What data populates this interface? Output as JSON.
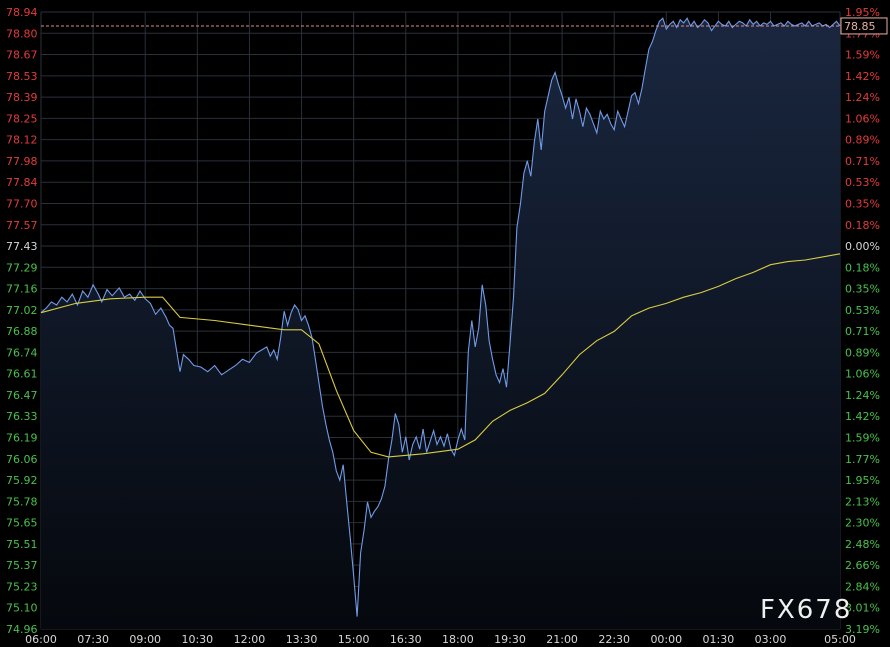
{
  "chart_data": {
    "type": "line",
    "ref_price": 77.43,
    "y_ticks": [
      "78.94",
      "78.80",
      "78.67",
      "78.53",
      "78.39",
      "78.25",
      "78.12",
      "77.98",
      "77.84",
      "77.70",
      "77.57",
      "77.43",
      "77.29",
      "77.16",
      "77.02",
      "76.88",
      "76.74",
      "76.61",
      "76.47",
      "76.33",
      "76.19",
      "76.06",
      "75.92",
      "75.78",
      "75.65",
      "75.51",
      "75.37",
      "75.23",
      "75.10",
      "74.96"
    ],
    "pct_ticks": [
      "1.95%",
      "1.77%",
      "1.59%",
      "1.42%",
      "1.24%",
      "1.06%",
      "0.89%",
      "0.71%",
      "0.53%",
      "0.35%",
      "0.18%",
      "0.00%",
      "0.18%",
      "0.35%",
      "0.53%",
      "0.71%",
      "0.89%",
      "1.06%",
      "1.24%",
      "1.42%",
      "1.59%",
      "1.77%",
      "1.95%",
      "2.13%",
      "2.30%",
      "2.48%",
      "2.66%",
      "2.84%",
      "3.01%",
      "3.19%"
    ],
    "x_ticks": [
      "06:00",
      "07:30",
      "09:00",
      "10:30",
      "12:00",
      "13:30",
      "15:00",
      "16:30",
      "18:00",
      "19:30",
      "21:00",
      "22:30",
      "00:00",
      "01:30",
      "03:00",
      "05:00"
    ],
    "last_price": "78.85",
    "ylim": [
      74.96,
      78.94
    ],
    "series": [
      {
        "role": "price",
        "color": "#6f9be8",
        "x": [
          0,
          0.15,
          0.3,
          0.45,
          0.6,
          0.75,
          0.9,
          1.05,
          1.2,
          1.35,
          1.5,
          1.65,
          1.75,
          1.9,
          2.05,
          2.25,
          2.4,
          2.55,
          2.7,
          2.85,
          3.0,
          3.15,
          3.3,
          3.45,
          3.6,
          3.7,
          3.8,
          4.0,
          4.1,
          4.25,
          4.4,
          4.6,
          4.8,
          5.0,
          5.2,
          5.4,
          5.6,
          5.8,
          6.0,
          6.2,
          6.35,
          6.5,
          6.6,
          6.7,
          6.8,
          6.9,
          7.0,
          7.1,
          7.2,
          7.3,
          7.4,
          7.5,
          7.6,
          7.7,
          7.8,
          7.9,
          8.0,
          8.1,
          8.2,
          8.3,
          8.4,
          8.5,
          8.6,
          8.7,
          8.8,
          8.9,
          9.0,
          9.1,
          9.2,
          9.3,
          9.4,
          9.5,
          9.6,
          9.7,
          9.8,
          9.9,
          10.0,
          10.1,
          10.2,
          10.3,
          10.4,
          10.5,
          10.6,
          10.7,
          10.8,
          10.9,
          11.0,
          11.1,
          11.2,
          11.3,
          11.4,
          11.5,
          11.6,
          11.7,
          11.8,
          11.9,
          12.0,
          12.1,
          12.2,
          12.3,
          12.4,
          12.5,
          12.6,
          12.7,
          12.8,
          12.9,
          13.0,
          13.1,
          13.2,
          13.3,
          13.4,
          13.5,
          13.6,
          13.7,
          13.8,
          13.9,
          14.0,
          14.1,
          14.2,
          14.3,
          14.4,
          14.5,
          14.6,
          14.7,
          14.8,
          14.9,
          15.0,
          15.1,
          15.2,
          15.3,
          15.4,
          15.5,
          15.6,
          15.7,
          15.8,
          15.9,
          16.0,
          16.1,
          16.2,
          16.3,
          16.4,
          16.5,
          16.6,
          16.7,
          16.8,
          16.9,
          17.0,
          17.1,
          17.2,
          17.3,
          17.4,
          17.5,
          17.6,
          17.7,
          17.8,
          17.9,
          18.0,
          18.1,
          18.2,
          18.3,
          18.4,
          18.5,
          18.6,
          18.7,
          18.8,
          18.9,
          19.0,
          19.1,
          19.2,
          19.3,
          19.4,
          19.5,
          19.6,
          19.7,
          19.8,
          19.9,
          20.0,
          20.1,
          20.2,
          20.3,
          20.4,
          20.5,
          20.6,
          20.7,
          20.8,
          20.9,
          21.0,
          21.1,
          21.2,
          21.3,
          21.4,
          21.5,
          21.6,
          21.7,
          21.8,
          21.9,
          22.0,
          22.1,
          22.2,
          22.3,
          22.4,
          22.5,
          22.6,
          22.7,
          22.8,
          22.9,
          23.0
        ],
        "values": [
          77.0,
          77.03,
          77.07,
          77.05,
          77.1,
          77.07,
          77.12,
          77.05,
          77.14,
          77.1,
          77.18,
          77.12,
          77.07,
          77.15,
          77.11,
          77.16,
          77.1,
          77.12,
          77.08,
          77.14,
          77.09,
          77.06,
          76.99,
          77.03,
          76.97,
          76.92,
          76.9,
          76.62,
          76.73,
          76.7,
          76.66,
          76.65,
          76.62,
          76.66,
          76.6,
          76.63,
          76.66,
          76.7,
          76.68,
          76.74,
          76.76,
          76.78,
          76.72,
          76.76,
          76.7,
          76.84,
          77.01,
          76.92,
          77.0,
          77.05,
          77.02,
          76.95,
          76.98,
          76.92,
          76.84,
          76.7,
          76.55,
          76.4,
          76.28,
          76.18,
          76.1,
          75.98,
          75.92,
          76.02,
          75.78,
          75.55,
          75.3,
          75.04,
          75.45,
          75.6,
          75.78,
          75.68,
          75.72,
          75.75,
          75.8,
          75.88,
          76.05,
          76.18,
          76.35,
          76.28,
          76.1,
          76.2,
          76.05,
          76.15,
          76.2,
          76.12,
          76.25,
          76.1,
          76.17,
          76.24,
          76.15,
          76.2,
          76.14,
          76.22,
          76.12,
          76.08,
          76.18,
          76.25,
          76.18,
          76.75,
          76.95,
          76.78,
          76.9,
          77.18,
          77.05,
          76.82,
          76.7,
          76.6,
          76.55,
          76.64,
          76.52,
          76.8,
          77.1,
          77.55,
          77.7,
          77.9,
          77.98,
          77.88,
          78.1,
          78.25,
          78.05,
          78.3,
          78.4,
          78.5,
          78.55,
          78.47,
          78.4,
          78.32,
          78.39,
          78.25,
          78.38,
          78.3,
          78.2,
          78.32,
          78.28,
          78.22,
          78.16,
          78.3,
          78.25,
          78.28,
          78.22,
          78.18,
          78.3,
          78.25,
          78.2,
          78.3,
          78.4,
          78.42,
          78.35,
          78.45,
          78.58,
          78.7,
          78.75,
          78.82,
          78.88,
          78.9,
          78.83,
          78.86,
          78.88,
          78.84,
          78.89,
          78.87,
          78.9,
          78.85,
          78.88,
          78.84,
          78.86,
          78.89,
          78.87,
          78.82,
          78.85,
          78.88,
          78.86,
          78.85,
          78.88,
          78.84,
          78.86,
          78.88,
          78.87,
          78.85,
          78.89,
          78.86,
          78.88,
          78.85,
          78.87,
          78.86,
          78.88,
          78.85,
          78.86,
          78.87,
          78.85,
          78.88,
          78.86,
          78.85,
          78.86,
          78.87,
          78.85,
          78.88,
          78.85,
          78.86,
          78.87,
          78.85,
          78.86,
          78.84,
          78.86,
          78.88,
          78.85
        ],
        "x_note": "hours after 06:00"
      },
      {
        "role": "average",
        "color": "#d9cc42",
        "x": [
          0,
          1,
          2,
          3,
          3.5,
          4,
          5,
          6,
          7,
          7.5,
          8,
          8.5,
          9,
          9.5,
          10,
          11,
          12,
          12.5,
          13,
          13.5,
          14,
          14.5,
          15,
          15.5,
          16,
          16.5,
          17,
          17.5,
          18,
          18.5,
          19,
          19.5,
          20,
          20.5,
          21,
          21.5,
          22,
          22.5,
          23
        ],
        "values": [
          77.0,
          77.06,
          77.09,
          77.1,
          77.1,
          76.97,
          76.95,
          76.92,
          76.89,
          76.89,
          76.8,
          76.5,
          76.24,
          76.1,
          76.07,
          76.09,
          76.12,
          76.18,
          76.3,
          76.37,
          76.42,
          76.48,
          76.6,
          76.73,
          76.82,
          76.88,
          76.98,
          77.03,
          77.06,
          77.1,
          77.13,
          77.17,
          77.22,
          77.26,
          77.31,
          77.33,
          77.34,
          77.36,
          77.38
        ]
      }
    ]
  },
  "watermark": "FX678",
  "colors": {
    "up": "#e23b3b",
    "down": "#48c24a",
    "neutral": "#d6d6d6",
    "grid": "#2a2f38",
    "fill_top": "#1a2740",
    "fill_bottom": "#05080d",
    "ref_line": "#e58a8a"
  }
}
